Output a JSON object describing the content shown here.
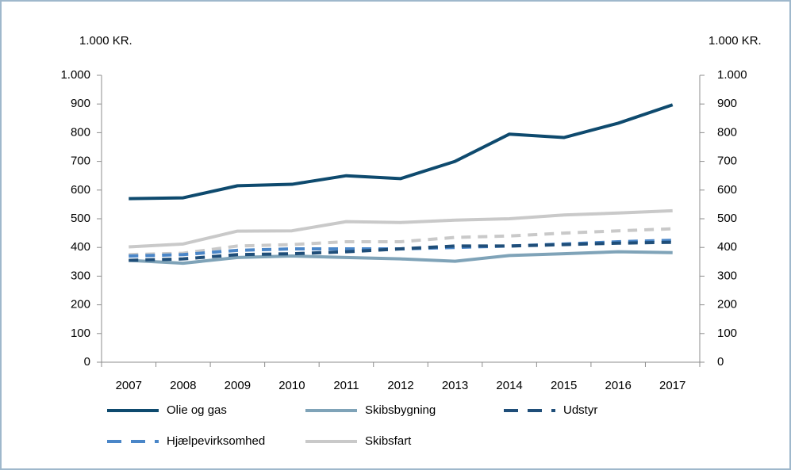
{
  "chart_data": {
    "type": "line",
    "ylabel": "1.000 KR.",
    "y2label": "1.000 KR.",
    "categories": [
      "2007",
      "2008",
      "2009",
      "2010",
      "2011",
      "2012",
      "2013",
      "2014",
      "2015",
      "2016",
      "2017"
    ],
    "ylim": [
      0,
      1000
    ],
    "y2lim": [
      0,
      1000
    ],
    "yticks": [
      0,
      100,
      200,
      300,
      400,
      500,
      600,
      700,
      800,
      900,
      {
        "value": 1000,
        "label": "1.000"
      }
    ],
    "y2ticks": [
      0,
      100,
      200,
      300,
      400,
      500,
      600,
      700,
      800,
      900,
      {
        "value": 1000,
        "label": "1.000"
      }
    ],
    "series": [
      {
        "color": "#c9c9c9",
        "dashed": true,
        "values": [
          375,
          380,
          405,
          410,
          420,
          420,
          435,
          440,
          450,
          458,
          465
        ]
      },
      {
        "name": "Skibsfart",
        "color": "#c9c9c9",
        "dashed": false,
        "values": [
          402,
          412,
          457,
          458,
          490,
          487,
          495,
          500,
          513,
          520,
          528
        ]
      },
      {
        "name": "Skibsbygning",
        "color": "#7fa3b8",
        "dashed": false,
        "values": [
          355,
          345,
          365,
          370,
          365,
          360,
          352,
          372,
          378,
          385,
          382
        ]
      },
      {
        "name": "Hjælpevirksomhed",
        "color": "#4a86c8",
        "dashed": true,
        "values": [
          370,
          375,
          390,
          395,
          395,
          395,
          400,
          405,
          412,
          420,
          425
        ]
      },
      {
        "name": "Udstyr",
        "color": "#1f4e79",
        "dashed": true,
        "values": [
          355,
          360,
          375,
          378,
          385,
          395,
          405,
          405,
          410,
          415,
          418
        ]
      },
      {
        "name": "Olie og gas",
        "color": "#0e4a6e",
        "dashed": false,
        "values": [
          570,
          573,
          615,
          620,
          650,
          640,
          700,
          795,
          783,
          833,
          897
        ]
      }
    ]
  }
}
